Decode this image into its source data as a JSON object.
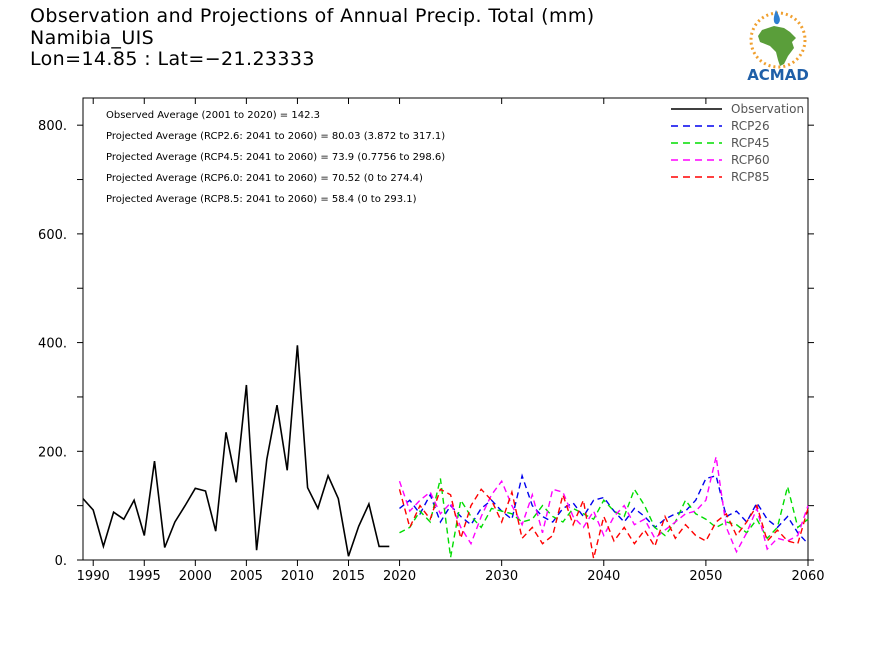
{
  "title": {
    "line1": "Observation and Projections of Annual Precip. Total (mm)",
    "line2": "Namibia_UIS",
    "line3": "Lon=14.85 : Lat=−21.23333"
  },
  "logo": {
    "text": "ACMAD",
    "colors": {
      "africa": "#5a9e3a",
      "text": "#1f5fa8",
      "drop": "#2f7fd0",
      "sun": "#f0a030"
    }
  },
  "stats": [
    "Observed Average (2001 to 2020) = 142.3",
    "Projected Average (RCP2.6: 2041 to 2060) = 80.03 (3.872 to 317.1)",
    "Projected Average (RCP4.5: 2041 to 2060) = 73.9 (0.7756 to 298.6)",
    "Projected Average (RCP6.0: 2041 to 2060) = 70.52 (0 to 274.4)",
    "Projected Average (RCP8.5: 2041 to 2060) = 58.4 (0 to 293.1)"
  ],
  "chart_data": {
    "type": "line",
    "xlim": [
      1989,
      2060
    ],
    "ylim": [
      0,
      850
    ],
    "x_ticks": [
      1990,
      1995,
      2000,
      2005,
      2010,
      2015,
      2020,
      2030,
      2040,
      2050,
      2060
    ],
    "y_ticks": [
      0,
      200,
      400,
      600,
      800
    ],
    "y_tick_labels": [
      "0.",
      "200.",
      "400.",
      "600.",
      "800."
    ],
    "legend_position": "top-right",
    "series": [
      {
        "name": "Observation",
        "color": "#000000",
        "dash": "solid",
        "x": [
          1989,
          1990,
          1991,
          1992,
          1993,
          1994,
          1995,
          1996,
          1997,
          1998,
          1999,
          2000,
          2001,
          2002,
          2003,
          2004,
          2005,
          2006,
          2007,
          2008,
          2009,
          2010,
          2011,
          2012,
          2013,
          2014,
          2015,
          2016,
          2017,
          2018,
          2019
        ],
        "y": [
          113,
          92,
          25,
          88,
          75,
          110,
          45,
          182,
          23,
          70,
          100,
          132,
          127,
          53,
          235,
          143,
          322,
          18,
          185,
          285,
          165,
          395,
          133,
          95,
          155,
          113,
          7,
          62,
          103,
          25,
          25
        ]
      },
      {
        "name": "RCP26",
        "color": "#0000ee",
        "dash": "dashed",
        "x": [
          2020,
          2021,
          2022,
          2023,
          2024,
          2025,
          2026,
          2027,
          2028,
          2029,
          2030,
          2031,
          2032,
          2033,
          2034,
          2035,
          2036,
          2037,
          2038,
          2039,
          2040,
          2041,
          2042,
          2043,
          2044,
          2045,
          2046,
          2047,
          2048,
          2049,
          2050,
          2051,
          2052,
          2053,
          2054,
          2055,
          2056,
          2057,
          2058,
          2059,
          2060
        ],
        "y": [
          95,
          110,
          85,
          120,
          70,
          100,
          80,
          65,
          95,
          110,
          90,
          75,
          155,
          100,
          80,
          70,
          95,
          105,
          80,
          110,
          115,
          90,
          70,
          95,
          80,
          60,
          75,
          85,
          90,
          110,
          150,
          155,
          80,
          90,
          70,
          105,
          75,
          60,
          80,
          50,
          30
        ]
      },
      {
        "name": "RCP45",
        "color": "#00dd00",
        "dash": "dashed",
        "x": [
          2020,
          2021,
          2022,
          2023,
          2024,
          2025,
          2026,
          2027,
          2028,
          2029,
          2030,
          2031,
          2032,
          2033,
          2034,
          2035,
          2036,
          2037,
          2038,
          2039,
          2040,
          2041,
          2042,
          2043,
          2044,
          2045,
          2046,
          2047,
          2048,
          2049,
          2050,
          2051,
          2052,
          2053,
          2054,
          2055,
          2056,
          2057,
          2058,
          2059,
          2060
        ],
        "y": [
          50,
          60,
          90,
          70,
          150,
          5,
          110,
          80,
          60,
          95,
          90,
          85,
          70,
          75,
          100,
          80,
          70,
          95,
          85,
          75,
          110,
          90,
          80,
          130,
          100,
          60,
          45,
          70,
          110,
          85,
          75,
          60,
          70,
          65,
          50,
          75,
          40,
          60,
          135,
          60,
          75
        ]
      },
      {
        "name": "RCP60",
        "color": "#ff00ff",
        "dash": "dashed",
        "x": [
          2020,
          2021,
          2022,
          2023,
          2024,
          2025,
          2026,
          2027,
          2028,
          2029,
          2030,
          2031,
          2032,
          2033,
          2034,
          2035,
          2036,
          2037,
          2038,
          2039,
          2040,
          2041,
          2042,
          2043,
          2044,
          2045,
          2046,
          2047,
          2048,
          2049,
          2050,
          2051,
          2052,
          2053,
          2054,
          2055,
          2056,
          2057,
          2058,
          2059,
          2060
        ],
        "y": [
          145,
          90,
          110,
          125,
          85,
          105,
          60,
          30,
          80,
          120,
          145,
          100,
          65,
          120,
          50,
          130,
          125,
          80,
          60,
          90,
          45,
          80,
          100,
          65,
          75,
          40,
          55,
          70,
          85,
          90,
          110,
          190,
          60,
          15,
          50,
          95,
          20,
          40,
          35,
          45,
          100
        ]
      },
      {
        "name": "RCP85",
        "color": "#ff0000",
        "dash": "dashed",
        "x": [
          2020,
          2021,
          2022,
          2023,
          2024,
          2025,
          2026,
          2027,
          2028,
          2029,
          2030,
          2031,
          2032,
          2033,
          2034,
          2035,
          2036,
          2037,
          2038,
          2039,
          2040,
          2041,
          2042,
          2043,
          2044,
          2045,
          2046,
          2047,
          2048,
          2049,
          2050,
          2051,
          2052,
          2053,
          2054,
          2055,
          2056,
          2057,
          2058,
          2059,
          2060
        ],
        "y": [
          130,
          60,
          100,
          75,
          130,
          120,
          40,
          100,
          130,
          110,
          70,
          125,
          40,
          60,
          30,
          45,
          120,
          65,
          110,
          3,
          80,
          35,
          60,
          30,
          55,
          25,
          80,
          40,
          65,
          45,
          35,
          70,
          85,
          45,
          70,
          100,
          35,
          55,
          35,
          30,
          95
        ]
      }
    ]
  }
}
